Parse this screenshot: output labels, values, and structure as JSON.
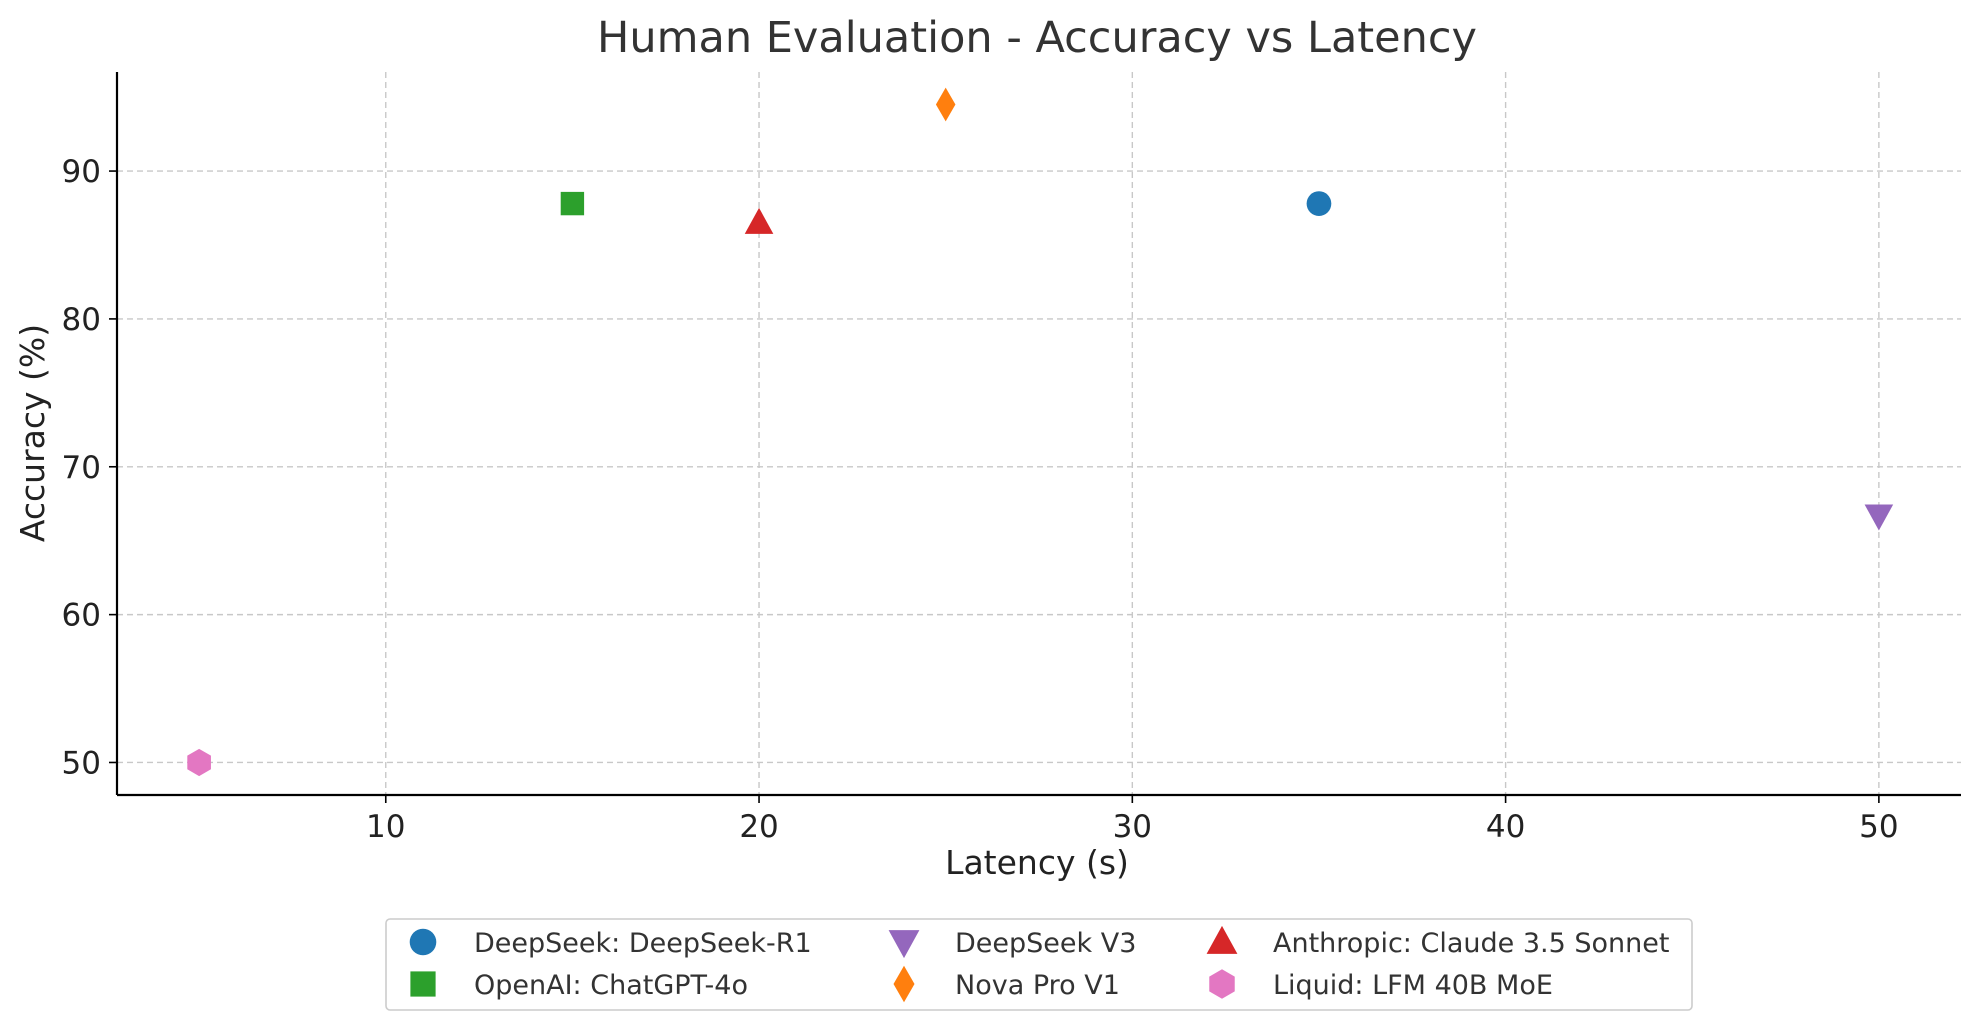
{
  "chart_data": {
    "type": "scatter",
    "title": "Human Evaluation - Accuracy vs Latency",
    "xlabel": "Latency (s)",
    "ylabel": "Accuracy (%)",
    "xlim": [
      2.8,
      52.2
    ],
    "ylim": [
      47.8,
      96.7
    ],
    "xticks": [
      10,
      20,
      30,
      40,
      50
    ],
    "yticks": [
      50,
      60,
      70,
      80,
      90
    ],
    "grid": true,
    "legend_position": "bottom-center",
    "series": [
      {
        "name": "DeepSeek: DeepSeek-R1",
        "marker": "circle",
        "color": "#1f77b4",
        "x": 35,
        "y": 87.8
      },
      {
        "name": "OpenAI: ChatGPT-4o",
        "marker": "square",
        "color": "#2ca02c",
        "x": 15,
        "y": 87.8
      },
      {
        "name": "DeepSeek V3",
        "marker": "triangle-down",
        "color": "#9467bd",
        "x": 50,
        "y": 66.7
      },
      {
        "name": "Nova Pro V1",
        "marker": "diamond",
        "color": "#ff7f0e",
        "x": 25,
        "y": 94.5
      },
      {
        "name": "Anthropic: Claude 3.5 Sonnet",
        "marker": "triangle-up",
        "color": "#d62728",
        "x": 20,
        "y": 86.5
      },
      {
        "name": "Liquid: LFM 40B MoE",
        "marker": "hexagon",
        "color": "#e377c2",
        "x": 5,
        "y": 50
      }
    ]
  }
}
